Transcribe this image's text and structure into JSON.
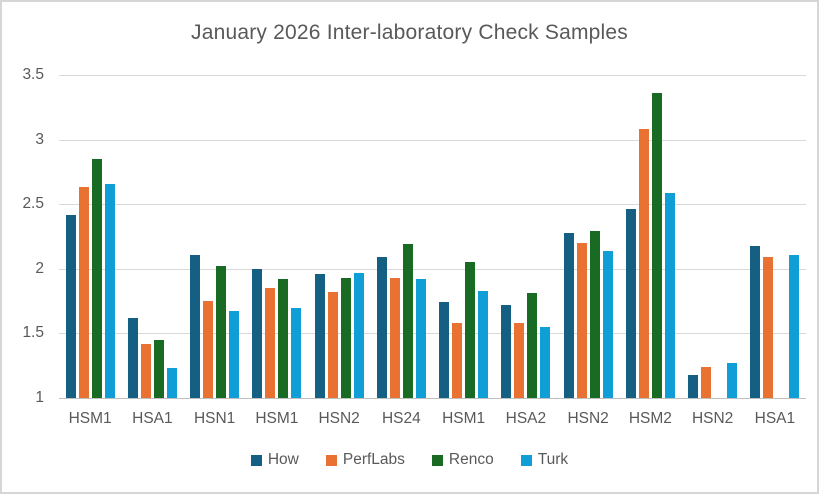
{
  "window": {
    "background": "#ffffff",
    "border_color": "#d6d6d6",
    "text_color": "#595959",
    "gridline_color": "#d9d9d9",
    "axis_line_color": "#bfbfbf"
  },
  "chart_data": {
    "type": "bar",
    "title": "January 2026 Inter-laboratory Check Samples",
    "categories": [
      "HSM1",
      "HSA1",
      "HSN1",
      "HSM1",
      "HSN2",
      "HS24",
      "HSM1",
      "HSA2",
      "HSN2",
      "HSM2",
      "HSN2",
      "HSA1"
    ],
    "series": [
      {
        "name": "How",
        "color": "#156082",
        "values": [
          2.42,
          1.62,
          2.11,
          2.0,
          1.96,
          2.09,
          1.74,
          1.72,
          2.28,
          2.46,
          1.18,
          2.18
        ]
      },
      {
        "name": "PerfLabs",
        "color": "#E97132",
        "values": [
          2.63,
          1.42,
          1.75,
          1.85,
          1.82,
          1.93,
          1.58,
          1.58,
          2.2,
          3.08,
          1.24,
          2.09
        ]
      },
      {
        "name": "Renco",
        "color": "#196B24",
        "values": [
          2.85,
          1.45,
          2.02,
          1.92,
          1.93,
          2.19,
          2.05,
          1.81,
          2.29,
          3.36,
          null,
          null
        ]
      },
      {
        "name": "Turk",
        "color": "#0F9ED5",
        "values": [
          2.66,
          1.23,
          1.67,
          1.7,
          1.97,
          1.92,
          1.83,
          1.55,
          2.14,
          2.59,
          1.27,
          2.11
        ]
      }
    ],
    "y_axis": {
      "min": 1,
      "max": 3.5,
      "tick_interval": 0.5,
      "tick_labels": [
        "3.5",
        "3",
        "2.5",
        "2",
        "1.5",
        "1"
      ]
    },
    "grid": true,
    "legend_position": "bottom",
    "xlabel": "",
    "ylabel": ""
  }
}
